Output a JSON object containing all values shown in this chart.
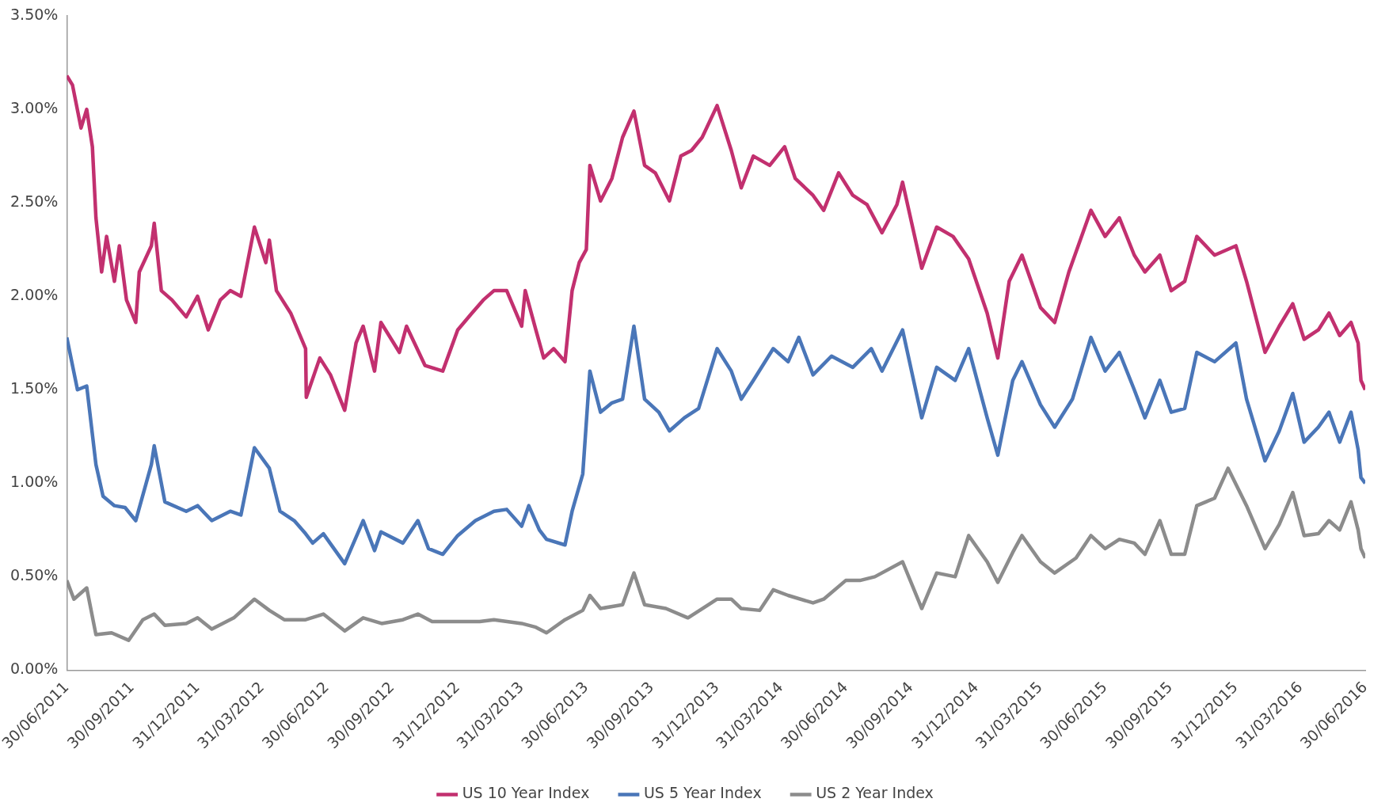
{
  "chart_data": {
    "type": "line",
    "xlim": [
      "2011-06-30",
      "2016-06-30"
    ],
    "xticks": [
      {
        "value": "2011-06-30",
        "label": "30/06/2011"
      },
      {
        "value": "2011-09-30",
        "label": "30/09/2011"
      },
      {
        "value": "2011-12-31",
        "label": "31/12/2011"
      },
      {
        "value": "2012-03-31",
        "label": "31/03/2012"
      },
      {
        "value": "2012-06-30",
        "label": "30/06/2012"
      },
      {
        "value": "2012-09-30",
        "label": "30/09/2012"
      },
      {
        "value": "2012-12-31",
        "label": "31/12/2012"
      },
      {
        "value": "2013-03-31",
        "label": "31/03/2013"
      },
      {
        "value": "2013-06-30",
        "label": "30/06/2013"
      },
      {
        "value": "2013-09-30",
        "label": "30/09/2013"
      },
      {
        "value": "2013-12-31",
        "label": "31/12/2013"
      },
      {
        "value": "2014-03-31",
        "label": "31/03/2014"
      },
      {
        "value": "2014-06-30",
        "label": "30/06/2014"
      },
      {
        "value": "2014-09-30",
        "label": "30/09/2014"
      },
      {
        "value": "2014-12-31",
        "label": "31/12/2014"
      },
      {
        "value": "2015-03-31",
        "label": "31/03/2015"
      },
      {
        "value": "2015-06-30",
        "label": "30/06/2015"
      },
      {
        "value": "2015-09-30",
        "label": "30/09/2015"
      },
      {
        "value": "2015-12-31",
        "label": "31/12/2015"
      },
      {
        "value": "2016-03-31",
        "label": "31/03/2016"
      },
      {
        "value": "2016-06-30",
        "label": "30/06/2016"
      }
    ],
    "ylim": [
      0,
      3.5
    ],
    "yticks": [
      {
        "value": 0,
        "label": "0.00%"
      },
      {
        "value": 0.5,
        "label": "0.50%"
      },
      {
        "value": 1,
        "label": "1.00%"
      },
      {
        "value": 1.5,
        "label": "1.50%"
      },
      {
        "value": 2,
        "label": "2.00%"
      },
      {
        "value": 2.5,
        "label": "2.50%"
      },
      {
        "value": 3,
        "label": "3.00%"
      },
      {
        "value": 3.5,
        "label": "3.50%"
      }
    ],
    "grid": false,
    "legend": "bottom",
    "marker": "none",
    "line_style": "solid",
    "series": [
      {
        "name": "US 10 Year Index",
        "color": "#c2306f",
        "x": [
          "2011-06-30",
          "2011-07-08",
          "2011-07-20",
          "2011-07-28",
          "2011-08-05",
          "2011-08-10",
          "2011-08-18",
          "2011-08-25",
          "2011-09-05",
          "2011-09-12",
          "2011-09-22",
          "2011-10-05",
          "2011-10-10",
          "2011-10-27",
          "2011-10-31",
          "2011-11-10",
          "2011-11-25",
          "2011-12-15",
          "2011-12-31",
          "2012-01-15",
          "2012-02-01",
          "2012-02-15",
          "2012-03-01",
          "2012-03-20",
          "2012-04-05",
          "2012-04-10",
          "2012-04-20",
          "2012-05-10",
          "2012-05-31",
          "2012-06-01",
          "2012-06-20",
          "2012-07-05",
          "2012-07-25",
          "2012-08-10",
          "2012-08-20",
          "2012-09-05",
          "2012-09-14",
          "2012-10-10",
          "2012-10-20",
          "2012-11-15",
          "2012-12-10",
          "2012-12-31",
          "2013-01-20",
          "2013-02-05",
          "2013-02-20",
          "2013-03-10",
          "2013-03-31",
          "2013-04-05",
          "2013-04-20",
          "2013-05-01",
          "2013-05-15",
          "2013-05-31",
          "2013-06-10",
          "2013-06-20",
          "2013-06-30",
          "2013-07-05",
          "2013-07-20",
          "2013-08-05",
          "2013-08-20",
          "2013-09-05",
          "2013-09-20",
          "2013-10-05",
          "2013-10-25",
          "2013-11-10",
          "2013-11-25",
          "2013-12-10",
          "2013-12-31",
          "2014-01-20",
          "2014-02-03",
          "2014-02-20",
          "2014-03-15",
          "2014-04-05",
          "2014-04-20",
          "2014-05-15",
          "2014-05-30",
          "2014-06-20",
          "2014-07-10",
          "2014-07-30",
          "2014-08-20",
          "2014-09-10",
          "2014-09-18",
          "2014-10-15",
          "2014-11-05",
          "2014-11-28",
          "2014-12-20",
          "2015-01-15",
          "2015-01-30",
          "2015-02-15",
          "2015-03-05",
          "2015-03-31",
          "2015-04-20",
          "2015-05-10",
          "2015-06-10",
          "2015-06-30",
          "2015-07-20",
          "2015-08-10",
          "2015-08-25",
          "2015-09-15",
          "2015-10-01",
          "2015-10-20",
          "2015-11-06",
          "2015-12-01",
          "2015-12-31",
          "2016-01-15",
          "2016-02-10",
          "2016-03-01",
          "2016-03-20",
          "2016-04-05",
          "2016-04-25",
          "2016-05-10",
          "2016-05-25",
          "2016-06-10",
          "2016-06-20",
          "2016-06-24",
          "2016-06-30"
        ],
        "values": [
          3.18,
          3.13,
          2.9,
          3.0,
          2.8,
          2.42,
          2.13,
          2.32,
          2.08,
          2.27,
          1.98,
          1.86,
          2.13,
          2.27,
          2.39,
          2.03,
          1.98,
          1.89,
          2.0,
          1.82,
          1.98,
          2.03,
          2.0,
          2.37,
          2.18,
          2.3,
          2.03,
          1.91,
          1.72,
          1.46,
          1.67,
          1.58,
          1.39,
          1.75,
          1.84,
          1.6,
          1.86,
          1.7,
          1.84,
          1.63,
          1.6,
          1.82,
          1.91,
          1.98,
          2.03,
          2.03,
          1.84,
          2.03,
          1.82,
          1.67,
          1.72,
          1.65,
          2.03,
          2.18,
          2.25,
          2.7,
          2.51,
          2.63,
          2.85,
          2.99,
          2.7,
          2.66,
          2.51,
          2.75,
          2.78,
          2.85,
          3.02,
          2.78,
          2.58,
          2.75,
          2.7,
          2.8,
          2.63,
          2.54,
          2.46,
          2.66,
          2.54,
          2.49,
          2.34,
          2.49,
          2.61,
          2.15,
          2.37,
          2.32,
          2.2,
          1.91,
          1.67,
          2.08,
          2.22,
          1.94,
          1.86,
          2.13,
          2.46,
          2.32,
          2.42,
          2.22,
          2.13,
          2.22,
          2.03,
          2.08,
          2.32,
          2.22,
          2.27,
          2.08,
          1.7,
          1.84,
          1.96,
          1.77,
          1.82,
          1.91,
          1.79,
          1.86,
          1.75,
          1.55,
          1.5
        ]
      },
      {
        "name": "US 5 Year Index",
        "color": "#4a76b8",
        "x": [
          "2011-06-30",
          "2011-07-15",
          "2011-07-28",
          "2011-08-10",
          "2011-08-20",
          "2011-09-05",
          "2011-09-20",
          "2011-10-05",
          "2011-10-27",
          "2011-10-31",
          "2011-11-15",
          "2011-12-15",
          "2011-12-31",
          "2012-01-20",
          "2012-02-15",
          "2012-03-01",
          "2012-03-20",
          "2012-04-10",
          "2012-04-25",
          "2012-05-15",
          "2012-05-31",
          "2012-06-10",
          "2012-06-25",
          "2012-07-25",
          "2012-08-20",
          "2012-09-05",
          "2012-09-14",
          "2012-10-15",
          "2012-11-05",
          "2012-11-20",
          "2012-12-10",
          "2012-12-31",
          "2013-01-25",
          "2013-02-20",
          "2013-03-10",
          "2013-03-31",
          "2013-04-10",
          "2013-04-25",
          "2013-05-05",
          "2013-05-31",
          "2013-06-10",
          "2013-06-25",
          "2013-07-05",
          "2013-07-20",
          "2013-08-05",
          "2013-08-20",
          "2013-09-05",
          "2013-09-20",
          "2013-10-10",
          "2013-10-25",
          "2013-11-15",
          "2013-12-05",
          "2013-12-31",
          "2014-01-20",
          "2014-02-03",
          "2014-02-20",
          "2014-03-20",
          "2014-04-10",
          "2014-04-25",
          "2014-05-15",
          "2014-06-10",
          "2014-07-10",
          "2014-08-05",
          "2014-08-20",
          "2014-09-18",
          "2014-10-15",
          "2014-11-05",
          "2014-12-01",
          "2014-12-20",
          "2015-01-15",
          "2015-01-30",
          "2015-02-20",
          "2015-03-05",
          "2015-03-31",
          "2015-04-20",
          "2015-05-15",
          "2015-06-10",
          "2015-06-30",
          "2015-07-20",
          "2015-08-10",
          "2015-08-25",
          "2015-09-15",
          "2015-10-01",
          "2015-10-20",
          "2015-11-06",
          "2015-12-01",
          "2015-12-31",
          "2016-01-15",
          "2016-02-10",
          "2016-03-01",
          "2016-03-20",
          "2016-04-05",
          "2016-04-25",
          "2016-05-10",
          "2016-05-25",
          "2016-06-10",
          "2016-06-20",
          "2016-06-24",
          "2016-06-30"
        ],
        "values": [
          1.78,
          1.5,
          1.52,
          1.1,
          0.93,
          0.88,
          0.87,
          0.8,
          1.1,
          1.2,
          0.9,
          0.85,
          0.88,
          0.8,
          0.85,
          0.83,
          1.19,
          1.08,
          0.85,
          0.8,
          0.73,
          0.68,
          0.73,
          0.57,
          0.8,
          0.64,
          0.74,
          0.68,
          0.8,
          0.65,
          0.62,
          0.72,
          0.8,
          0.85,
          0.86,
          0.77,
          0.88,
          0.75,
          0.7,
          0.67,
          0.85,
          1.05,
          1.6,
          1.38,
          1.43,
          1.45,
          1.84,
          1.45,
          1.38,
          1.28,
          1.35,
          1.4,
          1.72,
          1.6,
          1.45,
          1.55,
          1.72,
          1.65,
          1.78,
          1.58,
          1.68,
          1.62,
          1.72,
          1.6,
          1.82,
          1.35,
          1.62,
          1.55,
          1.72,
          1.35,
          1.15,
          1.55,
          1.65,
          1.42,
          1.3,
          1.45,
          1.78,
          1.6,
          1.7,
          1.5,
          1.35,
          1.55,
          1.38,
          1.4,
          1.7,
          1.65,
          1.75,
          1.45,
          1.12,
          1.28,
          1.48,
          1.22,
          1.3,
          1.38,
          1.22,
          1.38,
          1.18,
          1.03,
          1.0
        ]
      },
      {
        "name": "US 2 Year Index",
        "color": "#8c8c8c",
        "x": [
          "2011-06-30",
          "2011-07-10",
          "2011-07-28",
          "2011-08-10",
          "2011-09-01",
          "2011-09-25",
          "2011-10-15",
          "2011-10-31",
          "2011-11-15",
          "2011-12-15",
          "2011-12-31",
          "2012-01-20",
          "2012-02-20",
          "2012-03-20",
          "2012-04-10",
          "2012-05-01",
          "2012-05-31",
          "2012-06-25",
          "2012-07-25",
          "2012-08-20",
          "2012-09-15",
          "2012-10-15",
          "2012-11-05",
          "2012-11-25",
          "2012-12-31",
          "2013-01-31",
          "2013-02-20",
          "2013-03-31",
          "2013-04-20",
          "2013-05-05",
          "2013-05-31",
          "2013-06-25",
          "2013-07-05",
          "2013-07-20",
          "2013-08-20",
          "2013-09-05",
          "2013-09-20",
          "2013-10-20",
          "2013-11-20",
          "2013-12-31",
          "2014-01-20",
          "2014-02-03",
          "2014-03-01",
          "2014-03-20",
          "2014-04-10",
          "2014-05-15",
          "2014-05-30",
          "2014-06-30",
          "2014-07-20",
          "2014-08-10",
          "2014-09-18",
          "2014-10-15",
          "2014-11-05",
          "2014-12-01",
          "2014-12-20",
          "2015-01-15",
          "2015-01-30",
          "2015-02-20",
          "2015-03-05",
          "2015-03-31",
          "2015-04-20",
          "2015-05-20",
          "2015-06-10",
          "2015-06-30",
          "2015-07-20",
          "2015-08-10",
          "2015-08-25",
          "2015-09-15",
          "2015-10-01",
          "2015-10-20",
          "2015-11-06",
          "2015-12-01",
          "2015-12-20",
          "2016-01-15",
          "2016-02-10",
          "2016-03-01",
          "2016-03-20",
          "2016-04-05",
          "2016-04-25",
          "2016-05-10",
          "2016-05-25",
          "2016-06-10",
          "2016-06-20",
          "2016-06-24",
          "2016-06-30"
        ],
        "values": [
          0.48,
          0.38,
          0.44,
          0.19,
          0.2,
          0.16,
          0.27,
          0.3,
          0.24,
          0.25,
          0.28,
          0.22,
          0.28,
          0.38,
          0.32,
          0.27,
          0.27,
          0.3,
          0.21,
          0.28,
          0.25,
          0.27,
          0.3,
          0.26,
          0.26,
          0.26,
          0.27,
          0.25,
          0.23,
          0.2,
          0.27,
          0.32,
          0.4,
          0.33,
          0.35,
          0.52,
          0.35,
          0.33,
          0.28,
          0.38,
          0.38,
          0.33,
          0.32,
          0.43,
          0.4,
          0.36,
          0.38,
          0.48,
          0.48,
          0.5,
          0.58,
          0.33,
          0.52,
          0.5,
          0.72,
          0.58,
          0.47,
          0.63,
          0.72,
          0.58,
          0.52,
          0.6,
          0.72,
          0.65,
          0.7,
          0.68,
          0.62,
          0.8,
          0.62,
          0.62,
          0.88,
          0.92,
          1.08,
          0.88,
          0.65,
          0.78,
          0.95,
          0.72,
          0.73,
          0.8,
          0.75,
          0.9,
          0.75,
          0.65,
          0.6
        ]
      }
    ]
  }
}
